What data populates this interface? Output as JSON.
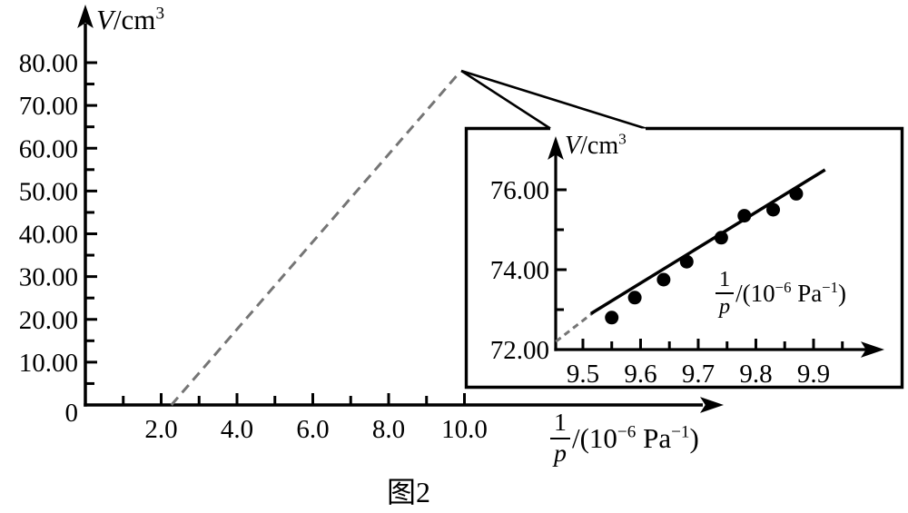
{
  "figure": {
    "caption": "图2",
    "background_color": "#ffffff",
    "axis_color": "#000000",
    "dashed_line_color": "#757575"
  },
  "labels": {
    "v_symbol": "V",
    "v_unit": "/cm",
    "v_exponent": "3",
    "frac_numerator": "1",
    "frac_denominator": "p",
    "x_open": "/(10",
    "x_exp1": "−6",
    "x_unit": " Pa",
    "x_exp2": "−1",
    "x_close": ")"
  },
  "chart_data": [
    {
      "id": "main",
      "type": "line",
      "title": "",
      "xlabel": "1/p /(10−6 Pa−1)",
      "ylabel": "V/cm3",
      "xlim": [
        0,
        11
      ],
      "ylim": [
        0,
        86
      ],
      "grid": false,
      "legend": null,
      "x_ticks": {
        "values": [
          2.0,
          4.0,
          6.0,
          8.0,
          10.0
        ],
        "labels": [
          "2.0",
          "4.0",
          "6.0",
          "8.0",
          "10.0"
        ],
        "minor": [
          1.0,
          3.0,
          5.0,
          7.0,
          9.0
        ]
      },
      "y_ticks": {
        "values": [
          10,
          20,
          30,
          40,
          50,
          60,
          70,
          80
        ],
        "labels": [
          "10.00",
          "20.00",
          "30.00",
          "40.00",
          "50.00",
          "60.00",
          "70.00",
          "80.00"
        ],
        "minor": [
          5,
          15,
          25,
          35,
          45,
          55,
          65,
          75
        ],
        "origin_label": "0"
      },
      "series": [
        {
          "name": "extrapolated-line",
          "style": "dashed",
          "color": "#757575",
          "points": [
            [
              2.27,
              0.0
            ],
            [
              9.89,
              77.9
            ]
          ]
        }
      ]
    },
    {
      "id": "inset",
      "type": "scatter",
      "title": "",
      "xlabel": "1/p /(10−6 Pa−1)",
      "ylabel": "V/cm3",
      "xlim": [
        9.45,
        10.02
      ],
      "ylim": [
        72.0,
        77.3
      ],
      "grid": false,
      "legend": null,
      "x_ticks": {
        "values": [
          9.5,
          9.6,
          9.7,
          9.8,
          9.9
        ],
        "labels": [
          "9.5",
          "9.6",
          "9.7",
          "9.8",
          "9.9"
        ],
        "minor": [
          9.55,
          9.65,
          9.75,
          9.85,
          9.95
        ]
      },
      "y_ticks": {
        "values": [
          72,
          74,
          76
        ],
        "labels": [
          "72.00",
          "74.00",
          "76.00"
        ],
        "minor": [
          73,
          75
        ]
      },
      "series": [
        {
          "name": "measured-data-points",
          "style": "scatter",
          "color": "#000000",
          "points": [
            [
              9.55,
              72.8
            ],
            [
              9.59,
              73.3
            ],
            [
              9.64,
              73.75
            ],
            [
              9.68,
              74.2
            ],
            [
              9.74,
              74.8
            ],
            [
              9.78,
              75.35
            ],
            [
              9.83,
              75.5
            ],
            [
              9.87,
              75.9
            ]
          ]
        },
        {
          "name": "fit-line",
          "style": "solid",
          "color": "#000000",
          "points": [
            [
              9.514,
              72.9
            ],
            [
              9.92,
              76.5
            ]
          ]
        },
        {
          "name": "fit-line-extension",
          "style": "dashed",
          "color": "#757575",
          "points": [
            [
              9.453,
              72.2
            ],
            [
              9.52,
              72.95
            ]
          ]
        }
      ]
    }
  ]
}
